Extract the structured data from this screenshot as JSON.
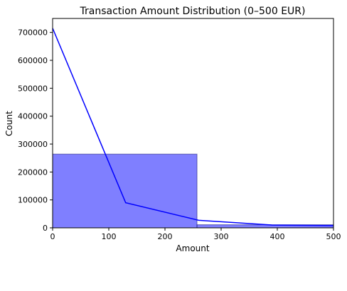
{
  "chart_data": {
    "type": "bar",
    "title": "Transaction Amount Distribution (0–500 EUR)",
    "xlabel": "Amount",
    "ylabel": "Count",
    "xlim": [
      0,
      500
    ],
    "ylim": [
      0,
      750000
    ],
    "xticks": [
      0,
      100,
      200,
      300,
      400,
      500
    ],
    "xtick_labels": [
      "0",
      "100",
      "200",
      "300",
      "400",
      "500"
    ],
    "yticks": [
      0,
      100000,
      200000,
      300000,
      400000,
      500000,
      600000,
      700000
    ],
    "ytick_labels": [
      "0",
      "100000",
      "200000",
      "300000",
      "400000",
      "500000",
      "600000",
      "700000"
    ],
    "grid": false,
    "legend": "none",
    "histogram": {
      "bins": [
        {
          "start": 0,
          "end": 257,
          "count": 264000
        },
        {
          "start": 257,
          "end": 500,
          "count": 11000
        }
      ],
      "color": "#0000ff",
      "opacity": 0.5
    },
    "kde_line": {
      "x": [
        0,
        130,
        260,
        390,
        500
      ],
      "y": [
        715000,
        90000,
        27000,
        10000,
        8000
      ],
      "color": "#0000ff"
    }
  }
}
